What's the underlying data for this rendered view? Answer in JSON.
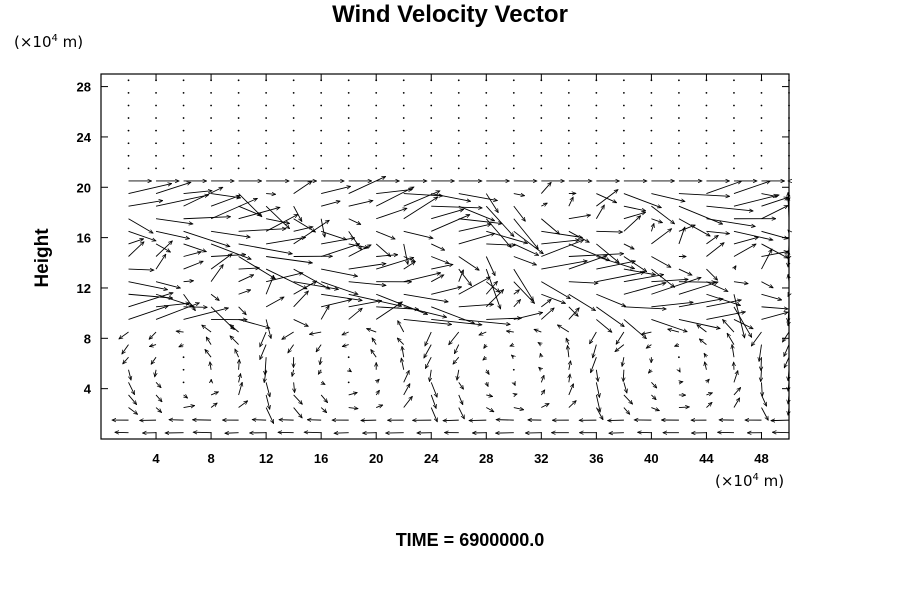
{
  "chart_data": {
    "type": "vector-field",
    "title": "Wind Velocity Vector",
    "ylabel": "Height",
    "y_unit": {
      "prefix": "(×10",
      "exp": "4",
      "suffix": " m)"
    },
    "x_unit": {
      "prefix": "(×10",
      "exp": "4",
      "suffix": " m)"
    },
    "xlim": [
      0,
      50
    ],
    "ylim": [
      0,
      29
    ],
    "x_ticks": [
      4,
      8,
      12,
      16,
      20,
      24,
      28,
      32,
      36,
      40,
      44,
      48
    ],
    "y_ticks": [
      4,
      8,
      12,
      16,
      20,
      24,
      28
    ],
    "grid_x": [
      2,
      4,
      6,
      8,
      10,
      12,
      14,
      16,
      18,
      20,
      22,
      24,
      26,
      28,
      30,
      32,
      34,
      36,
      38,
      40,
      42,
      44,
      46,
      48,
      50
    ],
    "grid_y": [
      0.5,
      1.5,
      2.5,
      3.5,
      4.5,
      5.5,
      6.5,
      7.5,
      8.5,
      9.5,
      10.5,
      11.5,
      12.5,
      13.5,
      14.5,
      15.5,
      16.5,
      17.5,
      18.5,
      19.5,
      20.5,
      21.5,
      22.5,
      23.5,
      24.5,
      25.5,
      26.5,
      27.5,
      28.5
    ],
    "field_description": "Strong eastward jet with turbulence between heights 9 and 20; weak rotating circulation below 9; near-calm air above 20; westward return flow near the ground"
  },
  "footer": {
    "time_label": "TIME = 6900000.0"
  }
}
